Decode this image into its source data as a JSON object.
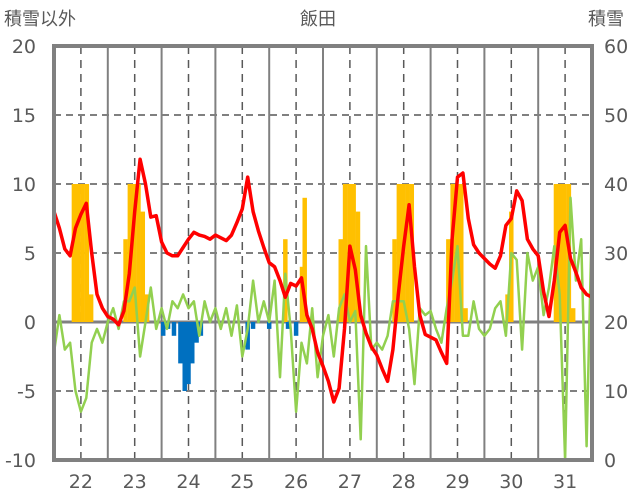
{
  "chart_data": {
    "type": "line",
    "title": "飯田",
    "ylabel_left": "積雪以外",
    "ylabel_right": "積雪",
    "ylim_left": [
      -10,
      20
    ],
    "ylim_right": [
      0,
      60
    ],
    "yticks_left": [
      "20",
      "15",
      "10",
      "5",
      "0",
      "-5",
      "-10"
    ],
    "yticks_right": [
      "60",
      "50",
      "40",
      "30",
      "20",
      "10",
      "0"
    ],
    "xlim": [
      21.5,
      31.5
    ],
    "xtick_labels": [
      "22",
      "23",
      "24",
      "25",
      "26",
      "27",
      "28",
      "29",
      "30",
      "31"
    ],
    "grid": true,
    "colors": {
      "red_line": "#ff0000",
      "green_line": "#92d050",
      "orange_bars": "#ffc000",
      "blue_bars": "#0070c0",
      "purple_line": "#7030a0",
      "axis": "#808080"
    },
    "x_start": 21.5,
    "x_step": 0.1,
    "red_series": [
      8,
      6.8,
      5.3,
      4.8,
      6.8,
      7.8,
      8.6,
      5,
      2,
      1,
      0.4,
      0.2,
      -0.2,
      0.8,
      3.5,
      8,
      11.8,
      10,
      7.6,
      7.7,
      5.8,
      5,
      4.8,
      4.8,
      5.4,
      6,
      6.5,
      6.3,
      6.2,
      6,
      6.3,
      6.1,
      5.9,
      6.3,
      7.2,
      8.2,
      10.5,
      8,
      6.6,
      5.4,
      4.3,
      4,
      3,
      1.8,
      2.8,
      2.6,
      3.2,
      0.5,
      -0.5,
      -2.2,
      -3.2,
      -4.3,
      -5.8,
      -4.8,
      -0.5,
      5.5,
      3.8,
      0.5,
      -0.8,
      -1.8,
      -2.4,
      -3.4,
      -4.3,
      -2,
      2,
      5.5,
      8.5,
      4,
      0.5,
      -0.9,
      -1.1,
      -1.3,
      -2.2,
      -3,
      6,
      10.5,
      10.8,
      7.5,
      5.6,
      5,
      4.6,
      4.2,
      3.9,
      4.8,
      7,
      7.5,
      9.5,
      8.8,
      6,
      5.3,
      4.8,
      2.2,
      0.4,
      3,
      6.5,
      7,
      4.6,
      3.6,
      2.5,
      2,
      1.8
    ],
    "green_series": [
      -2.2,
      0.5,
      -2,
      -1.5,
      -5,
      -6.5,
      -5.5,
      -1.5,
      -0.5,
      -1.5,
      0,
      1,
      -0.5,
      1.5,
      1.5,
      2.5,
      -2.5,
      0,
      2.5,
      -0.5,
      1,
      -0.5,
      1.5,
      1,
      2,
      1,
      1.5,
      -1,
      1.5,
      0,
      1,
      -0.5,
      1,
      -1,
      1.2,
      -2.5,
      -0.5,
      3,
      0,
      1.5,
      0,
      3,
      -4,
      3.5,
      -0.5,
      -6.5,
      -1.5,
      -3,
      1,
      -4,
      -1,
      0.5,
      -2.5,
      1,
      2,
      0,
      0.8,
      -8.5,
      5.5,
      -2,
      -1.5,
      -2,
      -1,
      1.5,
      1.5,
      1.5,
      -0.5,
      -4.5,
      1,
      0.5,
      0.8,
      -0.5,
      -1.5,
      1,
      3,
      5.5,
      -1,
      -1,
      1.5,
      -0.5,
      -1,
      -0.5,
      1,
      1.5,
      -1,
      5,
      4.5,
      -2,
      5,
      3,
      4,
      0.5,
      2.5,
      5.5,
      2,
      -10,
      9,
      3,
      6,
      -9,
      8
    ],
    "orange_bars": [
      [
        21.87,
        10
      ],
      [
        21.95,
        10
      ],
      [
        22.03,
        10
      ],
      [
        22.11,
        10
      ],
      [
        22.19,
        2
      ],
      [
        22.83,
        6
      ],
      [
        22.91,
        10
      ],
      [
        22.99,
        10
      ],
      [
        23.07,
        10
      ],
      [
        23.15,
        8
      ],
      [
        23.23,
        2
      ],
      [
        25.8,
        6
      ],
      [
        26.11,
        4
      ],
      [
        26.16,
        9
      ],
      [
        26.83,
        6
      ],
      [
        26.91,
        10
      ],
      [
        26.99,
        10
      ],
      [
        27.07,
        10
      ],
      [
        27.15,
        8
      ],
      [
        27.83,
        6
      ],
      [
        27.91,
        10
      ],
      [
        27.99,
        10
      ],
      [
        28.07,
        10
      ],
      [
        28.15,
        10
      ],
      [
        28.83,
        6
      ],
      [
        28.91,
        10
      ],
      [
        28.99,
        10
      ],
      [
        29.07,
        10
      ],
      [
        29.15,
        1
      ],
      [
        29.93,
        2
      ],
      [
        30.0,
        8
      ],
      [
        30.83,
        10
      ],
      [
        30.91,
        10
      ],
      [
        30.99,
        10
      ],
      [
        31.07,
        10
      ],
      [
        31.15,
        1
      ]
    ],
    "blue_bars": [
      [
        23.53,
        -1
      ],
      [
        23.62,
        -0.5
      ],
      [
        23.73,
        -1
      ],
      [
        23.85,
        -3
      ],
      [
        23.93,
        -5
      ],
      [
        24.0,
        -4.5
      ],
      [
        24.07,
        -3
      ],
      [
        24.15,
        -1.5
      ],
      [
        24.23,
        -1
      ],
      [
        25.1,
        -2
      ],
      [
        25.2,
        -0.5
      ],
      [
        25.5,
        -0.5
      ],
      [
        25.85,
        -0.5
      ],
      [
        26.0,
        -1
      ]
    ],
    "purple_series_right_axis": 0
  }
}
